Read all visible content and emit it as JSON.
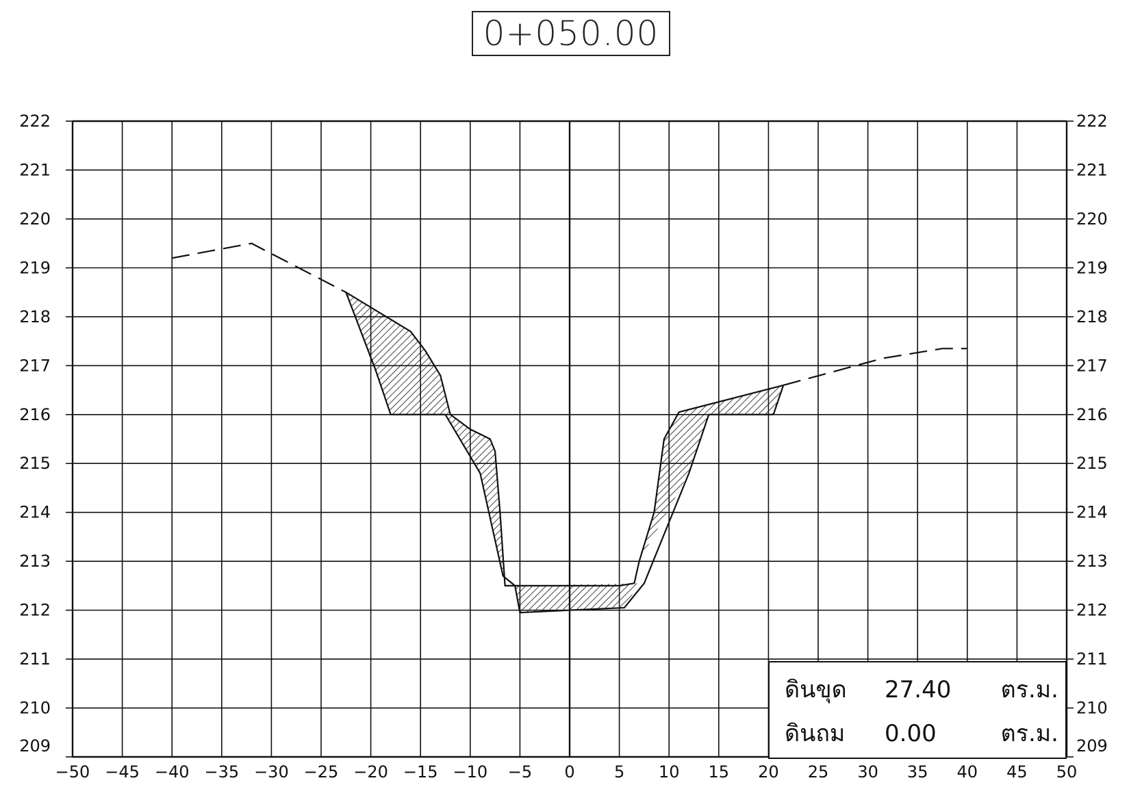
{
  "station": "0+050.00",
  "summary": {
    "cut_label": "ดินขุด",
    "cut_value": "27.40",
    "cut_unit": "ตร.ม.",
    "fill_label": "ดินถม",
    "fill_value": "0.00",
    "fill_unit": "ตร.ม."
  },
  "chart_data": {
    "type": "line",
    "xlim": [
      -50,
      50
    ],
    "ylim": [
      209,
      222
    ],
    "x_ticks": [
      -50,
      -45,
      -40,
      -35,
      -30,
      -25,
      -20,
      -15,
      -10,
      -5,
      0,
      5,
      10,
      15,
      20,
      25,
      30,
      35,
      40,
      45,
      50
    ],
    "y_ticks": [
      209,
      210,
      211,
      212,
      213,
      214,
      215,
      216,
      217,
      218,
      219,
      220,
      221,
      222
    ],
    "grid": true,
    "series": [
      {
        "style": "dashed",
        "points": [
          [
            -40,
            219.2
          ],
          [
            -32,
            219.5
          ],
          [
            -22.5,
            218.5
          ]
        ]
      },
      {
        "style": "dashed",
        "points": [
          [
            21.5,
            216.6
          ],
          [
            31.5,
            217.15
          ],
          [
            37.5,
            217.35
          ],
          [
            40,
            217.35
          ]
        ]
      },
      {
        "style": "solid",
        "points": [
          [
            -22.5,
            218.5
          ],
          [
            -16,
            217.7
          ],
          [
            -14.5,
            217.3
          ],
          [
            -13,
            216.8
          ],
          [
            -12,
            216
          ],
          [
            -10,
            215.7
          ],
          [
            -8,
            215.5
          ],
          [
            -7.5,
            215.25
          ],
          [
            -7,
            214
          ],
          [
            -6.5,
            212.5
          ],
          [
            -5,
            212.5
          ],
          [
            5,
            212.5
          ],
          [
            6.5,
            212.55
          ],
          [
            7,
            213
          ],
          [
            8.5,
            214
          ],
          [
            9.5,
            215.5
          ],
          [
            11,
            216.05
          ],
          [
            21.5,
            216.6
          ],
          [
            20.5,
            216.0
          ]
        ]
      },
      {
        "style": "solid",
        "points": [
          [
            -22.5,
            218.5
          ],
          [
            -19.5,
            216.9
          ],
          [
            -18,
            216
          ],
          [
            -12.5,
            216
          ],
          [
            -9,
            214.8
          ],
          [
            -6.7,
            212.7
          ],
          [
            -5.5,
            212.5
          ],
          [
            -5,
            211.95
          ],
          [
            0,
            212.0
          ],
          [
            5.5,
            212.05
          ],
          [
            7.5,
            212.55
          ],
          [
            12,
            214.8
          ],
          [
            14,
            216
          ],
          [
            20.5,
            216
          ]
        ]
      }
    ],
    "hatched_regions": [
      [
        [
          -22.5,
          218.5
        ],
        [
          -16,
          217.7
        ],
        [
          -14.5,
          217.3
        ],
        [
          -13,
          216.8
        ],
        [
          -12,
          216
        ],
        [
          -18,
          216
        ]
      ],
      [
        [
          -12,
          216
        ],
        [
          -10,
          215.7
        ],
        [
          -8,
          215.5
        ],
        [
          -7.5,
          215.25
        ],
        [
          -7,
          214
        ],
        [
          -6.5,
          212.5
        ],
        [
          -9,
          214.8
        ],
        [
          -12.5,
          216
        ]
      ],
      [
        [
          -5.5,
          212.5
        ],
        [
          7,
          212.55
        ],
        [
          5.5,
          212.05
        ],
        [
          0,
          212.0
        ],
        [
          -5,
          211.95
        ]
      ],
      [
        [
          7,
          213
        ],
        [
          8.5,
          214
        ],
        [
          9.5,
          215.5
        ],
        [
          11,
          216.05
        ],
        [
          14,
          216
        ],
        [
          12,
          214.8
        ]
      ],
      [
        [
          11,
          216.05
        ],
        [
          21.5,
          216.6
        ],
        [
          20.5,
          216
        ],
        [
          14,
          216
        ]
      ]
    ]
  }
}
